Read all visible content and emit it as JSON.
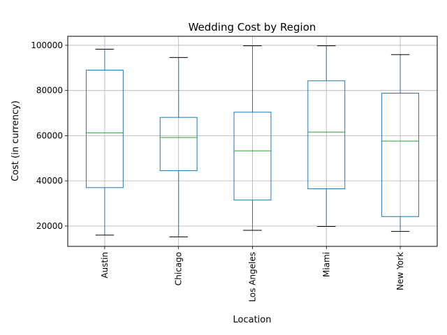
{
  "chart_data": {
    "type": "box",
    "title": "Wedding Cost by Region",
    "xlabel": "Location",
    "ylabel": "Cost (in currency)",
    "ylim": [
      11000,
      104000
    ],
    "yticks": [
      20000,
      40000,
      60000,
      80000,
      100000
    ],
    "grid": true,
    "categories": [
      "Austin",
      "Chicago",
      "Los Angeles",
      "Miami",
      "New York"
    ],
    "boxes": [
      {
        "category": "Austin",
        "min": 16000,
        "q1": 37000,
        "median": 61300,
        "q3": 89000,
        "max": 98300
      },
      {
        "category": "Chicago",
        "min": 15200,
        "q1": 44500,
        "median": 59200,
        "q3": 68100,
        "max": 94600
      },
      {
        "category": "Los Angeles",
        "min": 18100,
        "q1": 31500,
        "median": 53300,
        "q3": 70400,
        "max": 99800
      },
      {
        "category": "Miami",
        "min": 19800,
        "q1": 36500,
        "median": 61600,
        "q3": 84300,
        "max": 99800
      },
      {
        "category": "New York",
        "min": 17600,
        "q1": 24200,
        "median": 57600,
        "q3": 78800,
        "max": 95900
      }
    ],
    "colors": {
      "box": "#1f77b4",
      "median": "#2ca02c",
      "whisker_cap": "#000000",
      "grid": "#b0b0b0"
    }
  }
}
